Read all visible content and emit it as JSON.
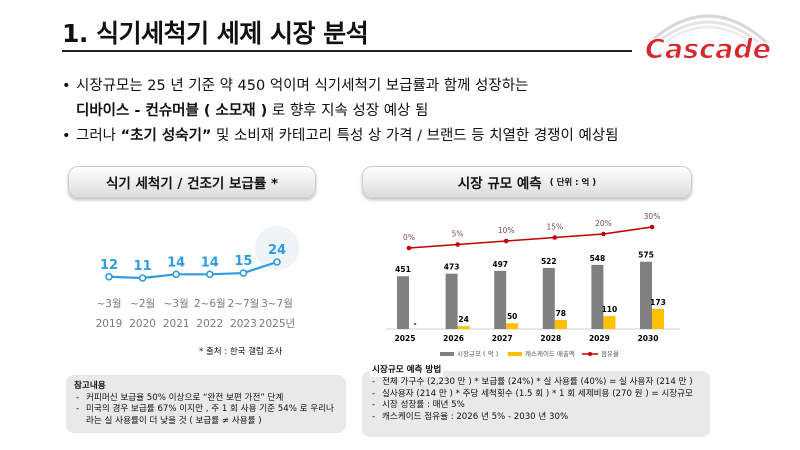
{
  "header": {
    "title": "1.  식기세척기 세제 시장 분석",
    "logo_text": "Cascade"
  },
  "bullets": {
    "b1_line1": "시장규모는  25 년 기준 약  450 억이며 식기세척기 보급률과 함께 성장하는",
    "b1_line2_bold": "디바이스 - 컨슈머블 ( 소모재 )",
    "b1_line2_rest": " 로 향후 지속 성장 예상 됨",
    "b2_pre": "그러나 ",
    "b2_bold": "“초기 성숙기”",
    "b2_rest": " 및 소비재 카테고리 특성 상 가격 / 브랜드 등 치열한 경쟁이 예상됨"
  },
  "left_panel": {
    "heading": "식기 세척기 / 건조기 보급률 *",
    "source": "*  출처 :  한국 갤럽 조사"
  },
  "right_panel": {
    "heading": "시장 규모 예측",
    "unit": "( 단위 : 억 )"
  },
  "chart_data": [
    {
      "type": "line",
      "x": [
        "~3월 2019",
        "~2월 2020",
        "~3월 2021",
        "2~6월 2022",
        "2~7월 2023",
        "3~7월 2025년"
      ],
      "x_top": [
        "~3월",
        "~2월",
        "~3월",
        "2~6월",
        "2~7월",
        "3~7월"
      ],
      "x_bottom": [
        "2019",
        "2020",
        "2021",
        "2022",
        "2023",
        "2025년"
      ],
      "series": [
        {
          "values": [
            12,
            11,
            14,
            14,
            15,
            24
          ]
        }
      ],
      "color": "#2f9be0"
    },
    {
      "type": "bar",
      "categories": [
        "2025",
        "2026",
        "2027",
        "2028",
        "2029",
        "2030"
      ],
      "series": [
        {
          "name": "시장규모 ( 억 )",
          "values": [
            451,
            473,
            497,
            522,
            548,
            575
          ],
          "color": "#808080"
        },
        {
          "name": "캐스케이드 매출액",
          "values": [
            null,
            24,
            50,
            78,
            110,
            173
          ],
          "color": "#ffc000"
        }
      ],
      "line_series": {
        "name": "점유율",
        "values": [
          "0%",
          "5%",
          "10%",
          "15%",
          "20%",
          "30%"
        ],
        "percent": [
          0,
          5,
          10,
          15,
          20,
          30
        ],
        "color": "#c00000"
      },
      "missing_label": "-"
    }
  ],
  "notes_left": {
    "title": "참고내용",
    "items": [
      "커피머신 보급율  50%  이상으로 “완전 보편 가전” 단계",
      "미국의 경우 보급률  67%  이지만 ,  주 1 회 사용 기준  54% 로 우리나라는 실 사용률이 더 낮을 것  ( 보급률 ≠ 사용률 )"
    ]
  },
  "notes_right": {
    "title": "시장규모 예측 방법",
    "items": [
      "전체 가구수 (2,230 만 ) *  보급률 (24%) *  실 사용률 (40%) =  실 사용자 (214 만 )",
      "실사용자 (214 만 ) *  주당 세척횟수 (1.5 회 ) * 1 회 세제비용 (270 원 ) =  시장규모",
      "시장 성장률  :  매년  5%",
      "캐스케이드 점유율  : 2026 년  5% - 2030 년  30%"
    ]
  }
}
